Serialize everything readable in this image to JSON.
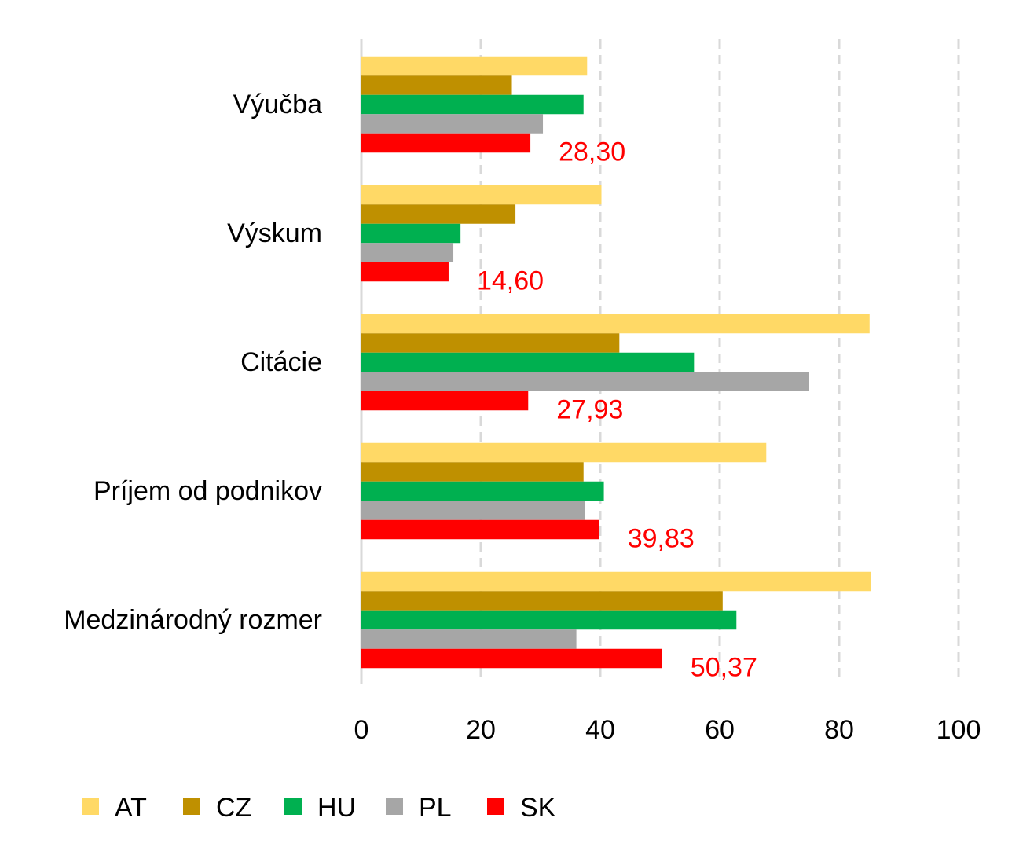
{
  "chart_data": {
    "type": "bar",
    "orientation": "horizontal",
    "categories": [
      "Výučba",
      "Výskum",
      "Citácie",
      "Príjem od podnikov",
      "Medzinárodný rozmer"
    ],
    "series": [
      {
        "name": "AT",
        "color": "#FFD966",
        "values": [
          37.8,
          40.2,
          85.1,
          67.8,
          85.3
        ]
      },
      {
        "name": "CZ",
        "color": "#BF9000",
        "values": [
          25.2,
          25.8,
          43.2,
          37.2,
          60.5
        ]
      },
      {
        "name": "HU",
        "color": "#00B050",
        "values": [
          37.2,
          16.6,
          55.7,
          40.6,
          62.8
        ]
      },
      {
        "name": "PL",
        "color": "#A6A6A6",
        "values": [
          30.4,
          15.4,
          75.0,
          37.5,
          36.0
        ]
      },
      {
        "name": "SK",
        "color": "#FF0000",
        "values": [
          28.3,
          14.6,
          27.93,
          39.83,
          50.37
        ]
      }
    ],
    "data_labels": {
      "series": "SK",
      "color": "#FF0000",
      "texts": [
        "28,30",
        "14,60",
        "27,93",
        "39,83",
        "50,37"
      ]
    },
    "x_ticks": [
      "0",
      "20",
      "40",
      "60",
      "80",
      "100"
    ],
    "xlim": [
      0,
      100
    ],
    "grid": "vertical dashed",
    "legend_position": "bottom",
    "title": "",
    "xlabel": "",
    "ylabel": ""
  }
}
